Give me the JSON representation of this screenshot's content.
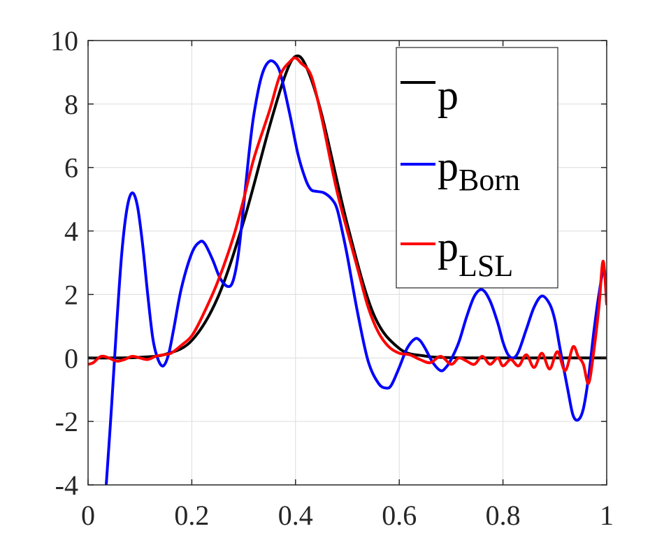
{
  "chart_data": {
    "type": "line",
    "title": "",
    "xlabel": "",
    "ylabel": "",
    "xlim": [
      0,
      1
    ],
    "ylim": [
      -4,
      10
    ],
    "x_ticks": [
      0,
      0.2,
      0.4,
      0.6,
      0.8,
      1
    ],
    "x_tick_labels": [
      "0",
      "0.2",
      "0.4",
      "0.6",
      "0.8",
      "1"
    ],
    "y_ticks": [
      -4,
      -2,
      0,
      2,
      4,
      6,
      8,
      10
    ],
    "y_tick_labels": [
      "-4",
      "-2",
      "0",
      "2",
      "4",
      "6",
      "8",
      "10"
    ],
    "grid": true,
    "legend_position": "top-right",
    "series": [
      {
        "name": "p",
        "label_main": "p",
        "label_sub": "",
        "color": "#000000",
        "x": [
          0,
          0.05,
          0.1,
          0.15,
          0.2,
          0.25,
          0.3,
          0.35,
          0.38,
          0.4,
          0.42,
          0.45,
          0.5,
          0.55,
          0.6,
          0.65,
          0.7,
          0.8,
          0.9,
          1.0
        ],
        "y": [
          0,
          0,
          0.02,
          0.12,
          0.55,
          1.9,
          4.3,
          7.3,
          8.9,
          9.5,
          9.2,
          7.7,
          4.2,
          1.4,
          0.3,
          0.06,
          0.01,
          0,
          0,
          0
        ]
      },
      {
        "name": "pBorn",
        "label_main": "p",
        "label_sub": "Born",
        "color": "#0000ff",
        "x": [
          0.035,
          0.045,
          0.055,
          0.065,
          0.075,
          0.085,
          0.095,
          0.105,
          0.115,
          0.125,
          0.135,
          0.145,
          0.155,
          0.165,
          0.18,
          0.2,
          0.215,
          0.225,
          0.24,
          0.255,
          0.27,
          0.28,
          0.29,
          0.3,
          0.31,
          0.32,
          0.335,
          0.35,
          0.365,
          0.375,
          0.39,
          0.405,
          0.42,
          0.43,
          0.44,
          0.455,
          0.47,
          0.48,
          0.49,
          0.5,
          0.52,
          0.54,
          0.56,
          0.575,
          0.585,
          0.6,
          0.615,
          0.63,
          0.64,
          0.65,
          0.665,
          0.68,
          0.69,
          0.7,
          0.715,
          0.73,
          0.745,
          0.76,
          0.775,
          0.79,
          0.8,
          0.81,
          0.82,
          0.83,
          0.845,
          0.86,
          0.875,
          0.89,
          0.9,
          0.91,
          0.925,
          0.935,
          0.945,
          0.955,
          0.965,
          0.975,
          0.985,
          0.995,
          1.0
        ],
        "y": [
          -4.0,
          -1.6,
          1.0,
          3.3,
          4.7,
          5.2,
          4.8,
          3.6,
          2.0,
          0.6,
          -0.05,
          -0.25,
          0.1,
          0.9,
          2.2,
          3.3,
          3.65,
          3.6,
          3.1,
          2.5,
          2.25,
          2.45,
          3.3,
          4.8,
          6.4,
          7.7,
          8.9,
          9.35,
          9.2,
          8.7,
          7.6,
          6.4,
          5.6,
          5.3,
          5.25,
          5.2,
          5.0,
          4.7,
          4.0,
          3.2,
          1.4,
          -0.1,
          -0.8,
          -0.95,
          -0.85,
          -0.3,
          0.3,
          0.6,
          0.55,
          0.3,
          -0.15,
          -0.4,
          -0.3,
          -0.05,
          0.5,
          1.3,
          1.95,
          2.15,
          1.8,
          1.1,
          0.5,
          0.1,
          0.0,
          0.2,
          0.9,
          1.6,
          1.95,
          1.7,
          1.2,
          0.3,
          -1.0,
          -1.8,
          -1.95,
          -1.6,
          -0.6,
          0.8,
          2.0,
          2.8,
          1.7
        ]
      },
      {
        "name": "pLSL",
        "label_main": "p",
        "label_sub": "LSL",
        "color": "#ff0000",
        "x": [
          0,
          0.01,
          0.025,
          0.04,
          0.055,
          0.07,
          0.085,
          0.1,
          0.115,
          0.13,
          0.145,
          0.16,
          0.18,
          0.2,
          0.22,
          0.25,
          0.28,
          0.3,
          0.32,
          0.35,
          0.37,
          0.39,
          0.4,
          0.41,
          0.43,
          0.45,
          0.47,
          0.48,
          0.49,
          0.5,
          0.52,
          0.54,
          0.56,
          0.58,
          0.6,
          0.62,
          0.64,
          0.66,
          0.68,
          0.7,
          0.715,
          0.73,
          0.745,
          0.76,
          0.775,
          0.79,
          0.8,
          0.815,
          0.83,
          0.845,
          0.86,
          0.875,
          0.89,
          0.905,
          0.92,
          0.935,
          0.945,
          0.955,
          0.965,
          0.975,
          0.985,
          0.993,
          1.0
        ],
        "y": [
          -0.2,
          -0.15,
          0.05,
          0.0,
          -0.1,
          -0.05,
          0.05,
          0.0,
          -0.05,
          0.05,
          0.1,
          0.15,
          0.4,
          0.7,
          1.3,
          2.4,
          3.8,
          5.0,
          6.3,
          7.8,
          8.9,
          9.35,
          9.45,
          9.3,
          8.9,
          7.6,
          6.0,
          5.25,
          4.6,
          4.0,
          2.8,
          1.6,
          0.8,
          0.35,
          0.15,
          0.1,
          -0.05,
          -0.15,
          0.05,
          -0.2,
          0.0,
          -0.1,
          -0.2,
          0.05,
          -0.2,
          0.0,
          -0.25,
          -0.05,
          -0.25,
          0.1,
          -0.3,
          0.15,
          -0.35,
          0.2,
          -0.4,
          0.35,
          0.05,
          -0.2,
          -0.8,
          0.2,
          1.6,
          3.05,
          1.7
        ]
      }
    ]
  }
}
